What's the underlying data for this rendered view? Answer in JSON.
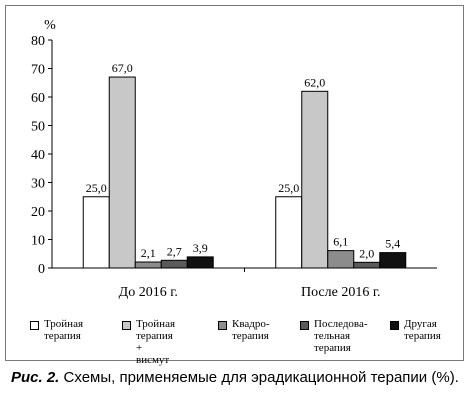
{
  "chart_data": {
    "type": "bar",
    "ylabel": "%",
    "ylim": [
      0,
      80
    ],
    "yticks": [
      0,
      10,
      20,
      30,
      40,
      50,
      60,
      70,
      80
    ],
    "categories": [
      "До 2016 г.",
      "После 2016 г."
    ],
    "series": [
      {
        "name": "Тройная\nтерапия",
        "values": [
          25.0,
          25.0
        ],
        "labels": [
          "25,0",
          "25,0"
        ],
        "color": "#ffffff"
      },
      {
        "name": "Тройная\nтерапия +\nвисмут",
        "values": [
          67.0,
          62.0
        ],
        "labels": [
          "67,0",
          "62,0"
        ],
        "color": "#c8c8c8"
      },
      {
        "name": "Квадро-\nтерапия",
        "values": [
          2.1,
          6.1
        ],
        "labels": [
          "2,1",
          "6,1"
        ],
        "color": "#8c8c8c"
      },
      {
        "name": "Последова-\nтельная\nтерапия",
        "values": [
          2.7,
          2.0
        ],
        "labels": [
          "2,7",
          "2,0"
        ],
        "color": "#5a5a5a"
      },
      {
        "name": "Другая\nтерапия",
        "values": [
          3.9,
          5.4
        ],
        "labels": [
          "3,9",
          "5,4"
        ],
        "color": "#111111"
      }
    ],
    "legend_position": "bottom",
    "grid": false
  },
  "caption": {
    "label": "Рис. 2.",
    "text": " Схемы, применяемые для эрадикационной терапии (%)."
  }
}
